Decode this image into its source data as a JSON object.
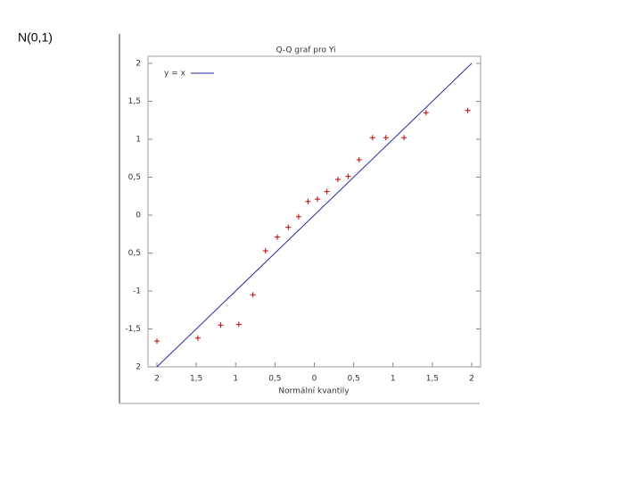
{
  "page_label": "N(0,1)",
  "chart_data": {
    "type": "scatter",
    "title": "Q-Q graf pro Yi",
    "x_label": "Normální kvantily",
    "xlim": [
      -2,
      2
    ],
    "ylim": [
      -2,
      2
    ],
    "xticks": [
      {
        "value": -2,
        "label": "2"
      },
      {
        "value": -1.5,
        "label": "1,5"
      },
      {
        "value": -1,
        "label": "1"
      },
      {
        "value": -0.5,
        "label": "0,5"
      },
      0,
      {
        "value": 0.5,
        "label": "0,5"
      },
      1,
      {
        "value": 1.5,
        "label": "1,5"
      },
      2
    ],
    "yticks": [
      {
        "value": -2,
        "label": "2"
      },
      {
        "value": -1.5,
        "label": "-1,5"
      },
      -1,
      {
        "value": -0.5,
        "label": "0,5"
      },
      0,
      {
        "value": 0.5,
        "label": "0,5"
      },
      1,
      {
        "value": 1.5,
        "label": "1,5"
      },
      2
    ],
    "legend": "top-left",
    "series": [
      {
        "name": "y = x",
        "color": "#2a2aa0",
        "mode": "line",
        "x": [
          -2,
          2
        ],
        "values": [
          -2,
          2
        ]
      },
      {
        "color": "#c00000",
        "mode": "marker",
        "x": [
          -2,
          -1.48,
          -1.19,
          -0.96,
          -0.78,
          -0.62,
          -0.47,
          -0.33,
          -0.2,
          -0.08,
          0.04,
          0.16,
          0.3,
          0.43,
          0.57,
          0.74,
          0.91,
          1.14,
          1.42,
          1.95
        ],
        "values": [
          -1.66,
          -1.62,
          -1.45,
          -1.44,
          -1.05,
          -0.47,
          -0.29,
          -0.16,
          -0.02,
          0.18,
          0.21,
          0.31,
          0.47,
          0.51,
          0.73,
          1.02,
          1.02,
          1.02,
          1.35,
          1.38
        ]
      }
    ]
  }
}
